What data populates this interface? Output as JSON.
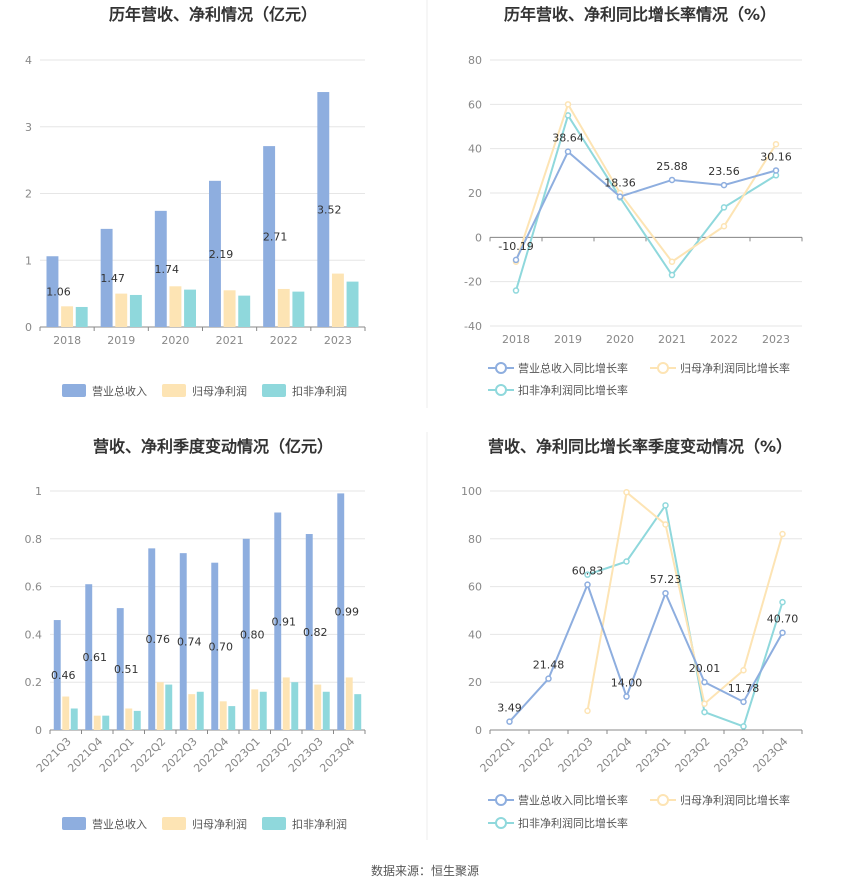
{
  "footer": "数据来源：恒生聚源",
  "colors": {
    "revenue": "#8eaedf",
    "net_profit": "#fde4b4",
    "deducted_profit": "#8fd8dc"
  },
  "chart_data": [
    {
      "type": "bar",
      "title": "历年营收、净利情况（亿元）",
      "categories": [
        "2018",
        "2019",
        "2020",
        "2021",
        "2022",
        "2023"
      ],
      "ylim": [
        0,
        4
      ],
      "yticks": [
        0,
        1,
        2,
        3,
        4
      ],
      "series": [
        {
          "name": "营业总收入",
          "values": [
            1.06,
            1.47,
            1.74,
            2.19,
            2.71,
            3.52
          ],
          "color": "#8eaedf",
          "labels": [
            "1.06",
            "1.47",
            "1.74",
            "2.19",
            "2.71",
            "3.52"
          ]
        },
        {
          "name": "归母净利润",
          "values": [
            0.31,
            0.5,
            0.61,
            0.55,
            0.57,
            0.8
          ],
          "color": "#fde4b4"
        },
        {
          "name": "扣非净利润",
          "values": [
            0.3,
            0.48,
            0.56,
            0.47,
            0.53,
            0.68
          ],
          "color": "#8fd8dc"
        }
      ],
      "legend": "bottom"
    },
    {
      "type": "line",
      "title": "历年营收、净利同比增长率情况（%）",
      "categories": [
        "2018",
        "2019",
        "2020",
        "2021",
        "2022",
        "2023"
      ],
      "ylim": [
        -40,
        80
      ],
      "yticks": [
        -40,
        -20,
        0,
        20,
        40,
        60,
        80
      ],
      "series": [
        {
          "name": "营业总收入同比增长率",
          "values": [
            -10.19,
            38.64,
            18.36,
            25.88,
            23.56,
            30.16
          ],
          "color": "#8eaedf",
          "labels": [
            "-10.19",
            "38.64",
            "18.36",
            "25.88",
            "23.56",
            "30.16"
          ]
        },
        {
          "name": "归母净利润同比增长率",
          "values": [
            -11,
            60,
            20,
            -11,
            5,
            42
          ],
          "color": "#fde4b4"
        },
        {
          "name": "扣非净利润同比增长率",
          "values": [
            -24,
            55,
            18,
            -17,
            13.5,
            28
          ],
          "color": "#8fd8dc"
        }
      ],
      "legend": "bottom"
    },
    {
      "type": "bar",
      "title": "营收、净利季度变动情况（亿元）",
      "categories": [
        "2021Q3",
        "2021Q4",
        "2022Q1",
        "2022Q2",
        "2022Q3",
        "2022Q4",
        "2023Q1",
        "2023Q2",
        "2023Q3",
        "2023Q4"
      ],
      "ylim": [
        0,
        1
      ],
      "yticks": [
        0,
        0.2,
        0.4,
        0.6,
        0.8,
        1
      ],
      "series": [
        {
          "name": "营业总收入",
          "values": [
            0.46,
            0.61,
            0.51,
            0.76,
            0.74,
            0.7,
            0.8,
            0.91,
            0.82,
            0.99
          ],
          "color": "#8eaedf",
          "labels": [
            "0.46",
            "0.61",
            "0.51",
            "0.76",
            "0.74",
            "0.70",
            "0.80",
            "0.91",
            "0.82",
            "0.99"
          ]
        },
        {
          "name": "归母净利润",
          "values": [
            0.14,
            0.06,
            0.09,
            0.2,
            0.15,
            0.12,
            0.17,
            0.22,
            0.19,
            0.22
          ],
          "color": "#fde4b4"
        },
        {
          "name": "扣非净利润",
          "values": [
            0.09,
            0.06,
            0.08,
            0.19,
            0.16,
            0.1,
            0.16,
            0.2,
            0.16,
            0.15
          ],
          "color": "#8fd8dc"
        }
      ],
      "legend": "bottom"
    },
    {
      "type": "line",
      "title": "营收、净利同比增长率季度变动情况（%）",
      "categories": [
        "2022Q1",
        "2022Q2",
        "2022Q3",
        "2022Q4",
        "2023Q1",
        "2023Q2",
        "2023Q3",
        "2023Q4"
      ],
      "ylim": [
        0,
        100
      ],
      "yticks": [
        0,
        20,
        40,
        60,
        80,
        100
      ],
      "series": [
        {
          "name": "营业总收入同比增长率",
          "values": [
            3.49,
            21.48,
            60.83,
            14.0,
            57.23,
            20.01,
            11.78,
            40.7
          ],
          "color": "#8eaedf",
          "labels": [
            "3.49",
            "21.48",
            "60.83",
            "14.00",
            "57.23",
            "20.01",
            "11.78",
            "40.70"
          ]
        },
        {
          "name": "归母净利润同比增长率",
          "values": [
            null,
            null,
            8,
            99.5,
            86,
            11,
            25,
            82
          ],
          "color": "#fde4b4"
        },
        {
          "name": "扣非净利润同比增长率",
          "values": [
            null,
            null,
            65,
            70.5,
            94,
            7.5,
            1.5,
            53.5
          ],
          "color": "#8fd8dc"
        }
      ],
      "legend": "bottom"
    }
  ]
}
